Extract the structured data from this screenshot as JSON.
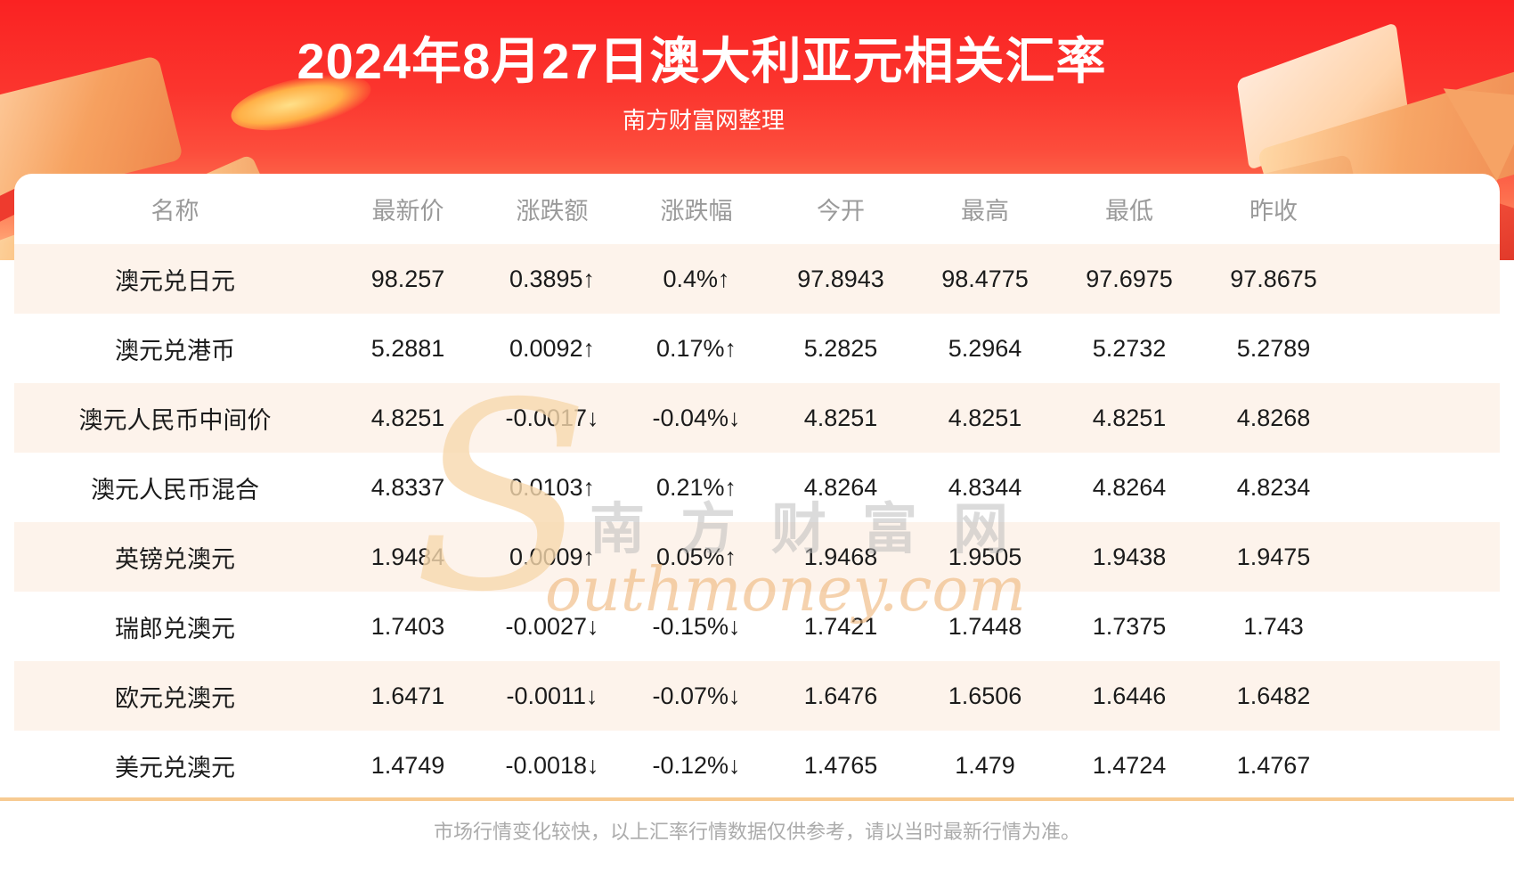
{
  "page": {
    "title": "2024年8月27日澳大利亚元相关汇率",
    "subtitle": "南方财富网整理",
    "footer_note": "市场行情变化较快，以上汇率行情数据仅供参考，请以当时最新行情为准。"
  },
  "watermark": {
    "initial": "S",
    "cn": "南方财富网",
    "en": "outhmoney.com"
  },
  "colors": {
    "up": "#ec2c2c",
    "down": "#109412",
    "banner_red": "#fa2222",
    "row_alt_bg": "#fdf3eb",
    "divider": "#f7cb92",
    "header_text": "#9a9a9a"
  },
  "table": {
    "headers": [
      "名称",
      "最新价",
      "涨跌额",
      "涨跌幅",
      "今开",
      "最高",
      "最低",
      "昨收"
    ],
    "rows": [
      {
        "name": "澳元兑日元",
        "dir": "up",
        "last": "98.257",
        "change": "0.3895↑",
        "pct": "0.4%↑",
        "open": "97.8943",
        "high": "98.4775",
        "low": "97.6975",
        "prev": "97.8675"
      },
      {
        "name": "澳元兑港币",
        "dir": "up",
        "last": "5.2881",
        "change": "0.0092↑",
        "pct": "0.17%↑",
        "open": "5.2825",
        "high": "5.2964",
        "low": "5.2732",
        "prev": "5.2789"
      },
      {
        "name": "澳元人民币中间价",
        "dir": "down",
        "last": "4.8251",
        "change": "-0.0017↓",
        "pct": "-0.04%↓",
        "open": "4.8251",
        "high": "4.8251",
        "low": "4.8251",
        "prev": "4.8268"
      },
      {
        "name": "澳元人民币混合",
        "dir": "up",
        "last": "4.8337",
        "change": "0.0103↑",
        "pct": "0.21%↑",
        "open": "4.8264",
        "high": "4.8344",
        "low": "4.8264",
        "prev": "4.8234"
      },
      {
        "name": "英镑兑澳元",
        "dir": "up",
        "last": "1.9484",
        "change": "0.0009↑",
        "pct": "0.05%↑",
        "open": "1.9468",
        "high": "1.9505",
        "low": "1.9438",
        "prev": "1.9475"
      },
      {
        "name": "瑞郎兑澳元",
        "dir": "down",
        "last": "1.7403",
        "change": "-0.0027↓",
        "pct": "-0.15%↓",
        "open": "1.7421",
        "high": "1.7448",
        "low": "1.7375",
        "prev": "1.743"
      },
      {
        "name": "欧元兑澳元",
        "dir": "down",
        "last": "1.6471",
        "change": "-0.0011↓",
        "pct": "-0.07%↓",
        "open": "1.6476",
        "high": "1.6506",
        "low": "1.6446",
        "prev": "1.6482"
      },
      {
        "name": "美元兑澳元",
        "dir": "down",
        "last": "1.4749",
        "change": "-0.0018↓",
        "pct": "-0.12%↓",
        "open": "1.4765",
        "high": "1.479",
        "low": "1.4724",
        "prev": "1.4767"
      }
    ]
  }
}
